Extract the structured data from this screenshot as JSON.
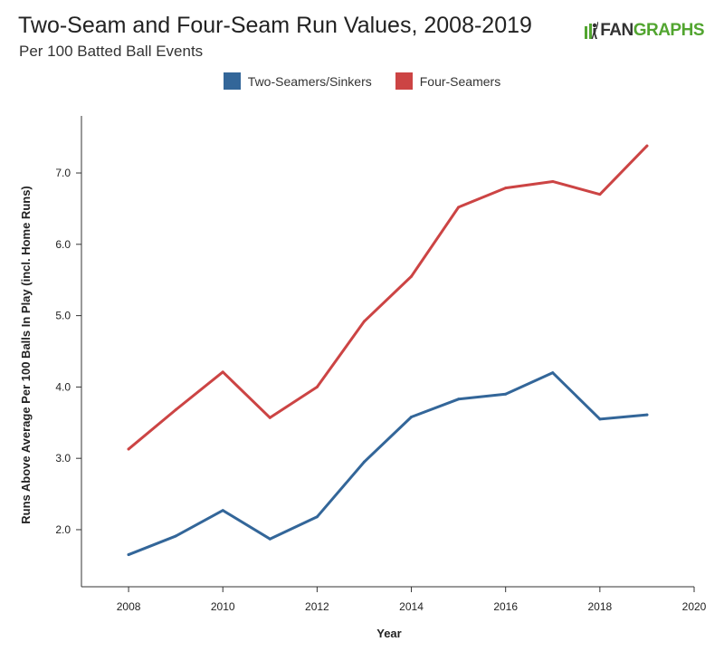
{
  "header": {
    "title": "Two-Seam and Four-Seam Run Values, 2008-2019",
    "subtitle": "Per 100 Batted Ball Events"
  },
  "logo": {
    "text_fan": "FAN",
    "text_graphs": "GRAPHS",
    "green": "#52a530",
    "dark": "#333333"
  },
  "chart_data": {
    "type": "line",
    "xlabel": "Year",
    "ylabel": "Runs Above Average Per 100 Balls In Play (incl. Home Runs)",
    "xlim": [
      2007,
      2020
    ],
    "ylim": [
      1.2,
      7.8
    ],
    "xticks": [
      2008,
      2010,
      2012,
      2014,
      2016,
      2018,
      2020
    ],
    "yticks": [
      2.0,
      3.0,
      4.0,
      5.0,
      6.0,
      7.0
    ],
    "legend_position": "top-center",
    "grid": false,
    "x": [
      2008,
      2009,
      2010,
      2011,
      2012,
      2013,
      2014,
      2015,
      2016,
      2017,
      2018,
      2019
    ],
    "series": [
      {
        "name": "Two-Seamers/Sinkers",
        "color": "#336699",
        "values": [
          1.65,
          1.91,
          2.27,
          1.87,
          2.18,
          2.95,
          3.58,
          3.83,
          3.9,
          4.2,
          3.55,
          3.61
        ]
      },
      {
        "name": "Four-Seamers",
        "color": "#cc4444",
        "values": [
          3.13,
          3.68,
          4.21,
          3.57,
          4.0,
          4.92,
          5.55,
          6.52,
          6.79,
          6.88,
          6.7,
          7.38
        ]
      }
    ]
  }
}
